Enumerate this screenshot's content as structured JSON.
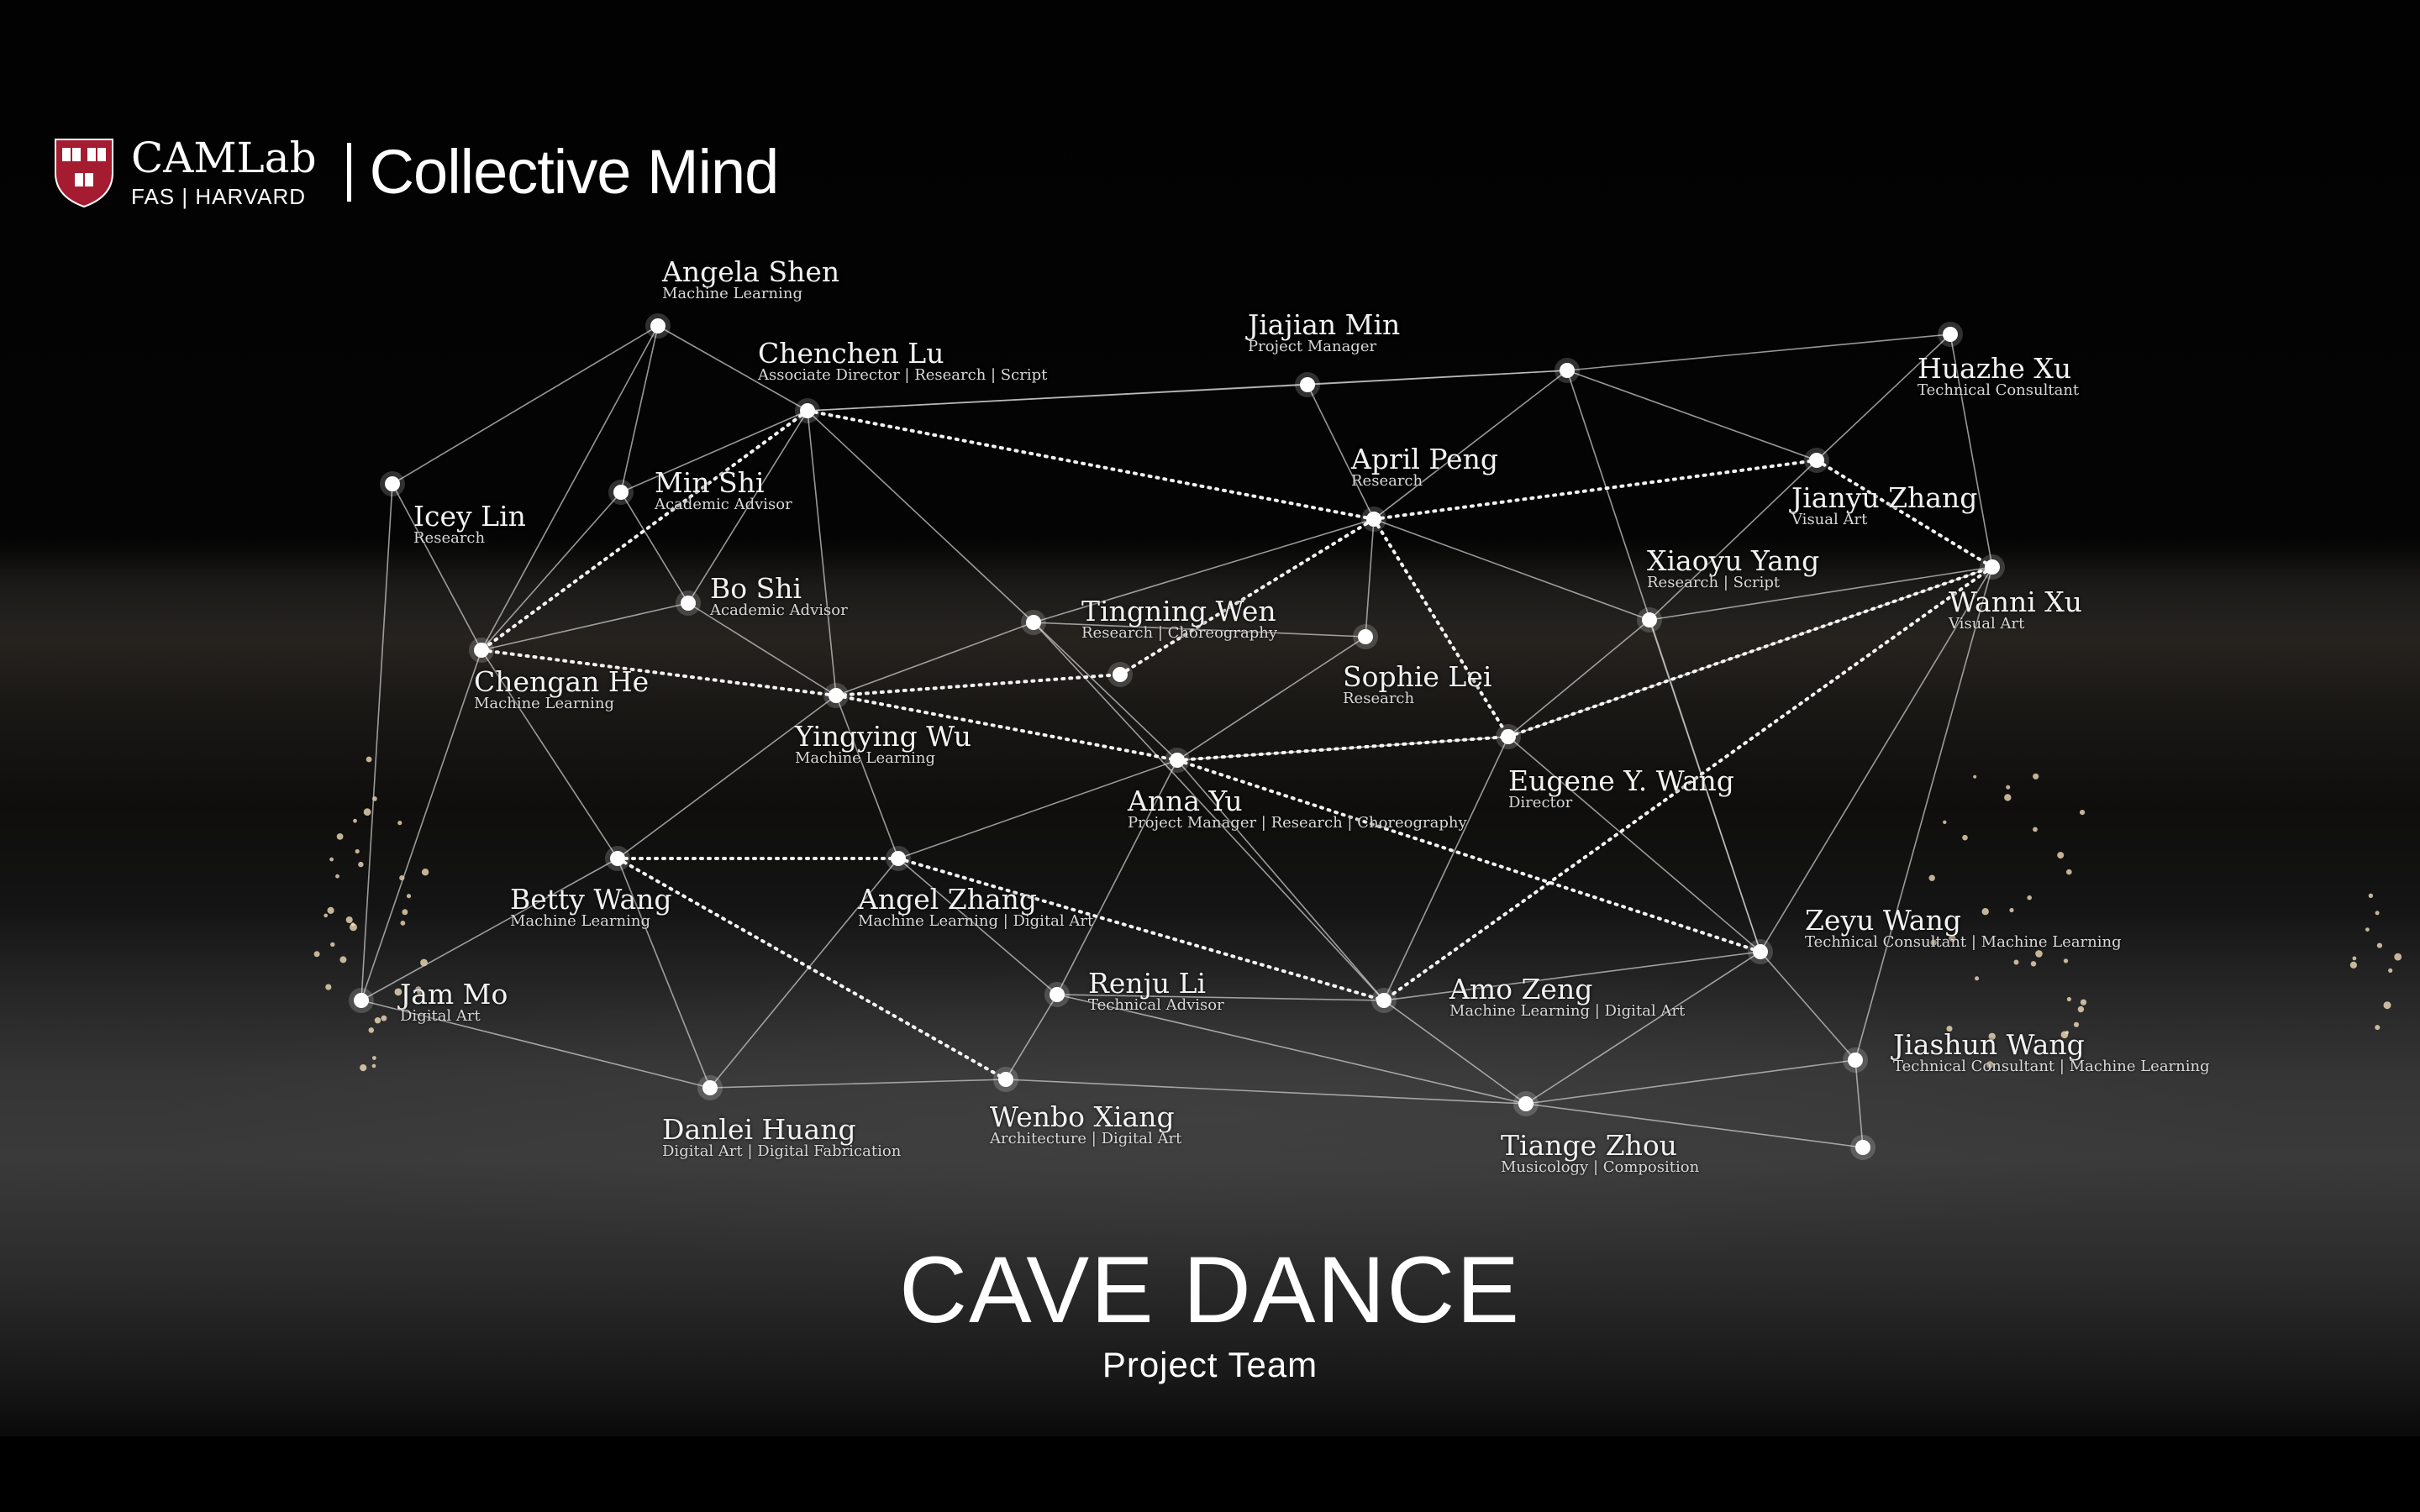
{
  "header": {
    "org_name": "CAMLab",
    "org_sub": "FAS | HARVARD",
    "title": "Collective Mind"
  },
  "project": {
    "title": "CAVE DANCE",
    "subtitle": "Project Team"
  },
  "colors": {
    "background": "#000000",
    "text": "#ffffff",
    "shield_red": "#a51c30",
    "edges": "#c8c8c8"
  },
  "members": [
    {
      "id": "angela",
      "name": "Angela Shen",
      "role": "Machine Learning"
    },
    {
      "id": "chenchen",
      "name": "Chenchen Lu",
      "role": "Associate Director | Research | Script"
    },
    {
      "id": "jiajian",
      "name": "Jiajian Min",
      "role": "Project Manager"
    },
    {
      "id": "huazhe",
      "name": "Huazhe Xu",
      "role": "Technical Consultant"
    },
    {
      "id": "april",
      "name": "April Peng",
      "role": "Research"
    },
    {
      "id": "jianyu",
      "name": "Jianyu Zhang",
      "role": "Visual Art"
    },
    {
      "id": "minshi",
      "name": "Min Shi",
      "role": "Academic Advisor"
    },
    {
      "id": "icey",
      "name": "Icey Lin",
      "role": "Research"
    },
    {
      "id": "xiaoyu",
      "name": "Xiaoyu Yang",
      "role": "Research | Script"
    },
    {
      "id": "wanni",
      "name": "Wanni Xu",
      "role": "Visual Art"
    },
    {
      "id": "boshi",
      "name": "Bo Shi",
      "role": "Academic Advisor"
    },
    {
      "id": "tingning",
      "name": "Tingning Wen",
      "role": "Research | Choreography"
    },
    {
      "id": "sophie",
      "name": "Sophie Lei",
      "role": "Research"
    },
    {
      "id": "chengan",
      "name": "Chengan He",
      "role": "Machine Learning"
    },
    {
      "id": "yingying",
      "name": "Yingying Wu",
      "role": "Machine Learning"
    },
    {
      "id": "eugene",
      "name": "Eugene Y. Wang",
      "role": "Director"
    },
    {
      "id": "anna",
      "name": "Anna Yu",
      "role": "Project Manager | Research | Choreography"
    },
    {
      "id": "betty",
      "name": "Betty Wang",
      "role": "Machine Learning"
    },
    {
      "id": "angel",
      "name": "Angel Zhang",
      "role": "Machine Learning | Digital Art"
    },
    {
      "id": "zeyu",
      "name": "Zeyu Wang",
      "role": "Technical Consultant | Machine Learning"
    },
    {
      "id": "jam",
      "name": "Jam Mo",
      "role": "Digital Art"
    },
    {
      "id": "renju",
      "name": "Renju Li",
      "role": "Technical Advisor"
    },
    {
      "id": "amo",
      "name": "Amo Zeng",
      "role": "Machine Learning | Digital Art"
    },
    {
      "id": "jiashun",
      "name": "Jiashun Wang",
      "role": "Technical Consultant | Machine Learning"
    },
    {
      "id": "danlei",
      "name": "Danlei Huang",
      "role": "Digital Art | Digital Fabrication"
    },
    {
      "id": "wenbo",
      "name": "Wenbo Xiang",
      "role": "Architecture | Digital Art"
    },
    {
      "id": "tiange",
      "name": "Tiange Zhou",
      "role": "Musicology | Composition"
    }
  ],
  "connections": [
    [
      "angela",
      "chenchen",
      "solid"
    ],
    [
      "angela",
      "icey",
      "solid"
    ],
    [
      "angela",
      "minshi",
      "solid"
    ],
    [
      "angela",
      "chengan",
      "solid"
    ],
    [
      "chenchen",
      "jiajian",
      "solid"
    ],
    [
      "chenchen",
      "minshi",
      "solid"
    ],
    [
      "chenchen",
      "boshi",
      "solid"
    ],
    [
      "chenchen",
      "yingying",
      "solid"
    ],
    [
      "chenchen",
      "tingning",
      "solid"
    ],
    [
      "chenchen",
      "j1",
      "solid"
    ],
    [
      "jiajian",
      "j1",
      "solid"
    ],
    [
      "jiajian",
      "april",
      "solid"
    ],
    [
      "j1",
      "huazhe",
      "solid"
    ],
    [
      "j1",
      "april",
      "solid"
    ],
    [
      "j1",
      "jianyu",
      "solid"
    ],
    [
      "j1",
      "zeyu",
      "solid"
    ],
    [
      "huazhe",
      "jianyu",
      "solid"
    ],
    [
      "huazhe",
      "wanni",
      "solid"
    ],
    [
      "jianyu",
      "xiaoyu",
      "solid"
    ],
    [
      "april",
      "sophie",
      "solid"
    ],
    [
      "april",
      "xiaoyu",
      "solid"
    ],
    [
      "april",
      "tingning",
      "solid"
    ],
    [
      "xiaoyu",
      "wanni",
      "solid"
    ],
    [
      "xiaoyu",
      "zeyu",
      "solid"
    ],
    [
      "xiaoyu",
      "eugene",
      "solid"
    ],
    [
      "minshi",
      "boshi",
      "solid"
    ],
    [
      "minshi",
      "chengan",
      "solid"
    ],
    [
      "boshi",
      "yingying",
      "solid"
    ],
    [
      "icey",
      "chengan",
      "solid"
    ],
    [
      "icey",
      "jam",
      "solid"
    ],
    [
      "chengan",
      "betty",
      "solid"
    ],
    [
      "chengan",
      "boshi",
      "solid"
    ],
    [
      "chengan",
      "jam",
      "solid"
    ],
    [
      "yingying",
      "betty",
      "solid"
    ],
    [
      "yingying",
      "angel",
      "solid"
    ],
    [
      "yingying",
      "tingning",
      "solid"
    ],
    [
      "tingning",
      "sophie",
      "solid"
    ],
    [
      "tingning",
      "anna",
      "solid"
    ],
    [
      "tingning",
      "amo",
      "solid"
    ],
    [
      "sophie",
      "anna",
      "solid"
    ],
    [
      "anna",
      "eugene",
      "solid"
    ],
    [
      "anna",
      "angel",
      "solid"
    ],
    [
      "anna",
      "renju",
      "solid"
    ],
    [
      "anna",
      "amo",
      "solid"
    ],
    [
      "eugene",
      "zeyu",
      "solid"
    ],
    [
      "eugene",
      "amo",
      "solid"
    ],
    [
      "wanni",
      "zeyu",
      "solid"
    ],
    [
      "wanni",
      "jiashun",
      "solid"
    ],
    [
      "wanni",
      "eugene",
      "solid"
    ],
    [
      "angel",
      "renju",
      "solid"
    ],
    [
      "angel",
      "danlei",
      "solid"
    ],
    [
      "betty",
      "jam",
      "solid"
    ],
    [
      "betty",
      "danlei",
      "solid"
    ],
    [
      "jam",
      "danlei",
      "solid"
    ],
    [
      "renju",
      "amo",
      "solid"
    ],
    [
      "renju",
      "wenbo",
      "solid"
    ],
    [
      "renju",
      "tiange",
      "solid"
    ],
    [
      "amo",
      "zeyu",
      "solid"
    ],
    [
      "amo",
      "tiange",
      "solid"
    ],
    [
      "zeyu",
      "tiange",
      "solid"
    ],
    [
      "zeyu",
      "jiashun",
      "solid"
    ],
    [
      "jiashun",
      "tiange",
      "solid"
    ],
    [
      "jiashun",
      "j2",
      "solid"
    ],
    [
      "tiange",
      "j2",
      "solid"
    ],
    [
      "danlei",
      "wenbo",
      "solid"
    ],
    [
      "wenbo",
      "tiange",
      "solid"
    ],
    [
      "chenchen",
      "chengan",
      "dotted"
    ],
    [
      "chenchen",
      "april",
      "dotted"
    ],
    [
      "chengan",
      "yingying",
      "dotted"
    ],
    [
      "yingying",
      "j3",
      "dotted"
    ],
    [
      "j3",
      "april",
      "dotted"
    ],
    [
      "yingying",
      "anna",
      "dotted"
    ],
    [
      "anna",
      "eugene",
      "dotted"
    ],
    [
      "anna",
      "zeyu",
      "dotted"
    ],
    [
      "april",
      "jianyu",
      "dotted"
    ],
    [
      "april",
      "eugene",
      "dotted"
    ],
    [
      "jianyu",
      "wanni",
      "dotted"
    ],
    [
      "eugene",
      "wanni",
      "dotted"
    ],
    [
      "wanni",
      "amo",
      "dotted"
    ],
    [
      "betty",
      "angel",
      "dotted"
    ],
    [
      "betty",
      "wenbo",
      "dotted"
    ],
    [
      "angel",
      "amo",
      "dotted"
    ]
  ]
}
